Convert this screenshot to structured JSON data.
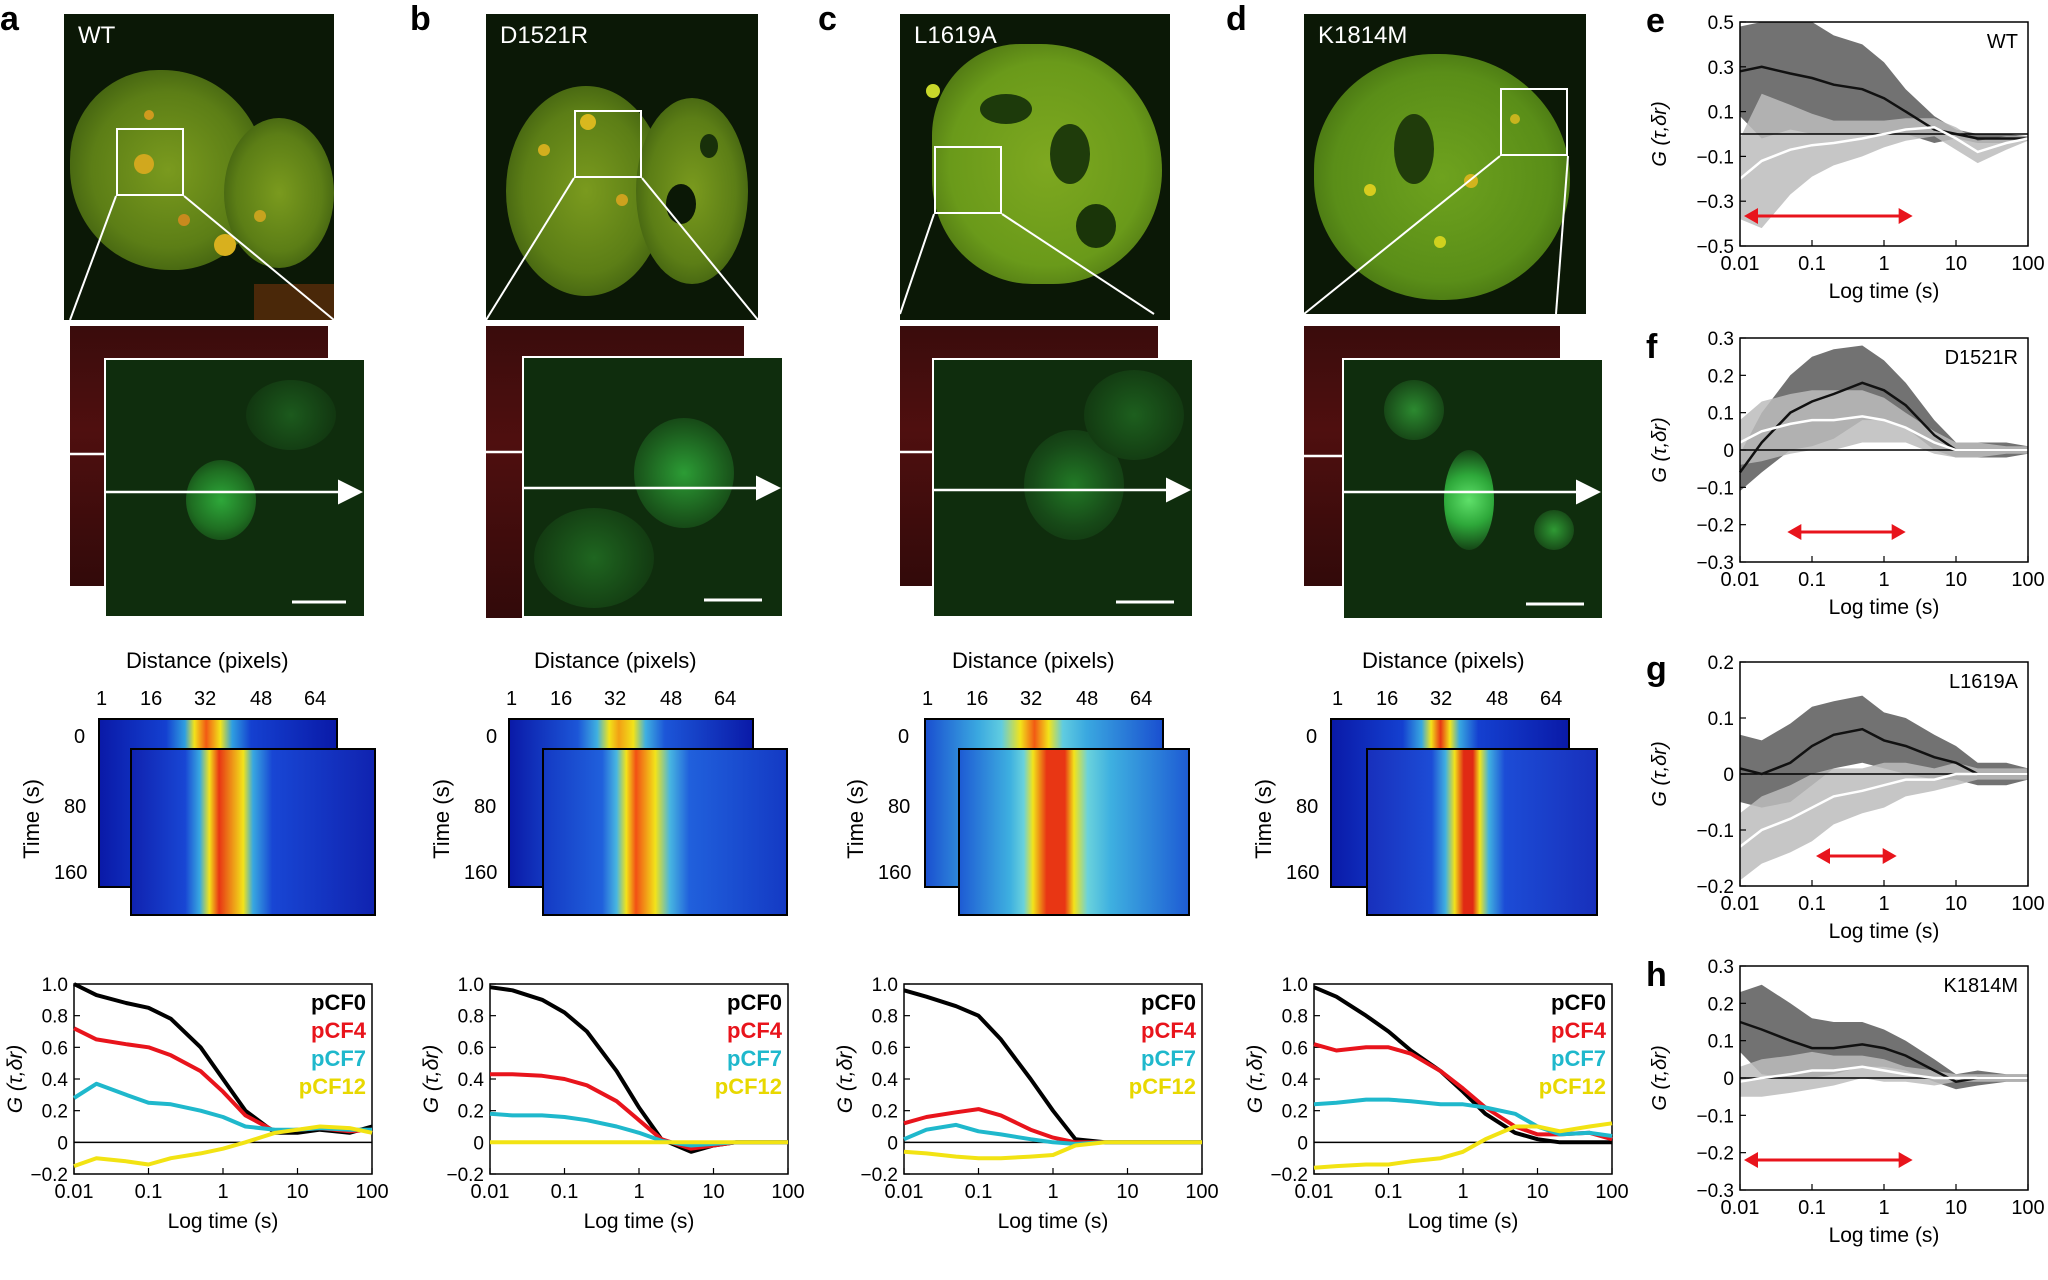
{
  "panels": {
    "letters": [
      "a",
      "b",
      "c",
      "d",
      "e",
      "f",
      "g",
      "h"
    ],
    "mutants": [
      "WT",
      "D1521R",
      "L1619A",
      "K1814M"
    ]
  },
  "kymograph": {
    "xlabel": "Distance (pixels)",
    "xticks": [
      "1",
      "16",
      "32",
      "48",
      "64"
    ],
    "ylabel": "Time (s)",
    "yticks": [
      "0",
      "80",
      "160"
    ]
  },
  "pcf": {
    "xlabel": "Log time (s)",
    "ylabel": "G (τ,δr)",
    "xticks": [
      "0.01",
      "0.1",
      "1",
      "10",
      "100"
    ],
    "yticks": [
      "1.0",
      "0.8",
      "0.6",
      "0.4",
      "0.2",
      "0",
      "−0.2"
    ],
    "legend": [
      {
        "name": "pCF0",
        "color": "#000000"
      },
      {
        "name": "pCF4",
        "color": "#e8141c"
      },
      {
        "name": "pCF7",
        "color": "#1fb8cc"
      },
      {
        "name": "pCF12",
        "color": "#f2e313"
      }
    ]
  },
  "cross": {
    "xlabel": "Log time (s)",
    "ylabel": "G (τ,δr)",
    "xticks": [
      "0.01",
      "0.1",
      "1",
      "10",
      "100"
    ],
    "panels": [
      {
        "label": "WT",
        "yticks": [
          "0.5",
          "0.3",
          "0.1",
          "−0.1",
          "−0.3",
          "−0.5"
        ]
      },
      {
        "label": "D1521R",
        "yticks": [
          "0.3",
          "0.2",
          "0.1",
          "0",
          "−0.1",
          "−0.2",
          "−0.3"
        ]
      },
      {
        "label": "L1619A",
        "yticks": [
          "0.2",
          "0.1",
          "0",
          "−0.1",
          "−0.2"
        ]
      },
      {
        "label": "K1814M",
        "yticks": [
          "0.3",
          "0.2",
          "0.1",
          "0",
          "−0.1",
          "−0.2",
          "−0.3"
        ]
      }
    ]
  },
  "chart_data": [
    {
      "type": "line",
      "panel": "a",
      "title": "",
      "xlabel": "Log time (s)",
      "ylabel": "G (τ,δr)",
      "xscale": "log",
      "xlim": [
        0.01,
        100
      ],
      "ylim": [
        -0.2,
        1.0
      ],
      "legend_position": "top-right",
      "x": [
        0.01,
        0.02,
        0.05,
        0.1,
        0.2,
        0.5,
        1,
        2,
        5,
        10,
        20,
        50,
        100
      ],
      "series": [
        {
          "name": "pCF0",
          "color": "#000000",
          "values": [
            1.0,
            0.93,
            0.88,
            0.85,
            0.78,
            0.6,
            0.4,
            0.2,
            0.06,
            0.06,
            0.08,
            0.06,
            0.1
          ]
        },
        {
          "name": "pCF4",
          "color": "#e8141c",
          "values": [
            0.72,
            0.65,
            0.62,
            0.6,
            0.55,
            0.45,
            0.32,
            0.17,
            0.07,
            0.08,
            0.09,
            0.07,
            0.08
          ]
        },
        {
          "name": "pCF7",
          "color": "#1fb8cc",
          "values": [
            0.28,
            0.37,
            0.3,
            0.25,
            0.24,
            0.2,
            0.16,
            0.1,
            0.08,
            0.08,
            0.09,
            0.08,
            0.08
          ]
        },
        {
          "name": "pCF12",
          "color": "#f2e313",
          "values": [
            -0.15,
            -0.1,
            -0.12,
            -0.14,
            -0.1,
            -0.07,
            -0.04,
            0.0,
            0.06,
            0.08,
            0.1,
            0.09,
            0.06
          ]
        }
      ]
    },
    {
      "type": "line",
      "panel": "b",
      "title": "",
      "xlabel": "Log time (s)",
      "ylabel": "G (τ,δr)",
      "xscale": "log",
      "xlim": [
        0.01,
        100
      ],
      "ylim": [
        -0.2,
        1.0
      ],
      "legend_position": "top-right",
      "x": [
        0.01,
        0.02,
        0.05,
        0.1,
        0.2,
        0.5,
        1,
        2,
        5,
        10,
        20,
        50,
        100
      ],
      "series": [
        {
          "name": "pCF0",
          "color": "#000000",
          "values": [
            0.98,
            0.96,
            0.9,
            0.82,
            0.7,
            0.45,
            0.22,
            0.02,
            -0.06,
            -0.02,
            0.0,
            0.0,
            0.0
          ]
        },
        {
          "name": "pCF4",
          "color": "#e8141c",
          "values": [
            0.43,
            0.43,
            0.42,
            0.4,
            0.36,
            0.26,
            0.14,
            0.02,
            -0.04,
            -0.02,
            0.0,
            0.0,
            0.0
          ]
        },
        {
          "name": "pCF7",
          "color": "#1fb8cc",
          "values": [
            0.18,
            0.17,
            0.17,
            0.16,
            0.14,
            0.1,
            0.06,
            0.01,
            -0.02,
            -0.01,
            0.0,
            0.0,
            0.0
          ]
        },
        {
          "name": "pCF12",
          "color": "#f2e313",
          "values": [
            0.0,
            0.0,
            0.0,
            0.0,
            0.0,
            0.0,
            0.0,
            0.0,
            0.0,
            0.0,
            0.0,
            0.0,
            0.0
          ]
        }
      ]
    },
    {
      "type": "line",
      "panel": "c",
      "title": "",
      "xlabel": "Log time (s)",
      "ylabel": "G (τ,δr)",
      "xscale": "log",
      "xlim": [
        0.01,
        100
      ],
      "ylim": [
        -0.2,
        1.0
      ],
      "legend_position": "top-right",
      "x": [
        0.01,
        0.02,
        0.05,
        0.1,
        0.2,
        0.5,
        1,
        2,
        5,
        10,
        20,
        50,
        100
      ],
      "series": [
        {
          "name": "pCF0",
          "color": "#000000",
          "values": [
            0.96,
            0.92,
            0.86,
            0.8,
            0.65,
            0.4,
            0.2,
            0.02,
            0.0,
            0.0,
            0.0,
            0.0,
            0.0
          ]
        },
        {
          "name": "pCF4",
          "color": "#e8141c",
          "values": [
            0.12,
            0.16,
            0.19,
            0.21,
            0.17,
            0.08,
            0.03,
            0.0,
            0.0,
            0.0,
            0.0,
            0.0,
            0.0
          ]
        },
        {
          "name": "pCF7",
          "color": "#1fb8cc",
          "values": [
            0.02,
            0.08,
            0.11,
            0.07,
            0.05,
            0.02,
            0.0,
            -0.01,
            0.0,
            0.0,
            0.0,
            0.0,
            0.0
          ]
        },
        {
          "name": "pCF12",
          "color": "#f2e313",
          "values": [
            -0.06,
            -0.07,
            -0.09,
            -0.1,
            -0.1,
            -0.09,
            -0.08,
            -0.02,
            0.0,
            0.0,
            0.0,
            0.0,
            0.0
          ]
        }
      ]
    },
    {
      "type": "line",
      "panel": "d",
      "title": "",
      "xlabel": "Log time (s)",
      "ylabel": "G (τ,δr)",
      "xscale": "log",
      "xlim": [
        0.01,
        100
      ],
      "ylim": [
        -0.2,
        1.0
      ],
      "legend_position": "top-right",
      "x": [
        0.01,
        0.02,
        0.05,
        0.1,
        0.2,
        0.5,
        1,
        2,
        5,
        10,
        20,
        50,
        100
      ],
      "series": [
        {
          "name": "pCF0",
          "color": "#000000",
          "values": [
            0.98,
            0.92,
            0.8,
            0.7,
            0.58,
            0.45,
            0.32,
            0.18,
            0.06,
            0.02,
            0.0,
            0.0,
            0.0
          ]
        },
        {
          "name": "pCF4",
          "color": "#e8141c",
          "values": [
            0.62,
            0.58,
            0.6,
            0.6,
            0.56,
            0.45,
            0.34,
            0.22,
            0.1,
            0.05,
            0.05,
            0.06,
            0.02
          ]
        },
        {
          "name": "pCF7",
          "color": "#1fb8cc",
          "values": [
            0.24,
            0.25,
            0.27,
            0.27,
            0.26,
            0.24,
            0.24,
            0.22,
            0.18,
            0.1,
            0.05,
            0.06,
            0.04
          ]
        },
        {
          "name": "pCF12",
          "color": "#f2e313",
          "values": [
            -0.16,
            -0.15,
            -0.14,
            -0.14,
            -0.12,
            -0.1,
            -0.06,
            0.02,
            0.1,
            0.1,
            0.07,
            0.1,
            0.12
          ]
        }
      ]
    },
    {
      "type": "line",
      "panel": "e",
      "title": "WT",
      "xlabel": "Log time (s)",
      "ylabel": "G (τ,δr)",
      "xscale": "log",
      "xlim": [
        0.01,
        100
      ],
      "ylim": [
        -0.5,
        0.5
      ],
      "grid": false,
      "zero_line": true,
      "x": [
        0.01,
        0.02,
        0.05,
        0.1,
        0.2,
        0.5,
        1,
        2,
        5,
        10,
        20,
        50,
        100
      ],
      "series": [
        {
          "color": "#111111",
          "band_color": "#6a6a6a",
          "values": [
            0.28,
            0.3,
            0.27,
            0.25,
            0.22,
            0.2,
            0.16,
            0.1,
            0.02,
            0.0,
            -0.02,
            -0.02,
            -0.02
          ],
          "band": [
            0.2,
            0.32,
            0.25,
            0.25,
            0.22,
            0.2,
            0.16,
            0.1,
            0.06,
            0.02,
            0.02,
            0.02,
            0.01
          ]
        },
        {
          "color": "#ffffff",
          "band_color": "#bcbcbc",
          "values": [
            -0.2,
            -0.12,
            -0.07,
            -0.05,
            -0.04,
            -0.02,
            0.0,
            0.02,
            0.03,
            -0.02,
            -0.08,
            -0.04,
            -0.02
          ],
          "band": [
            0.18,
            0.3,
            0.2,
            0.14,
            0.1,
            0.08,
            0.06,
            0.05,
            0.04,
            0.05,
            0.05,
            0.03,
            0.01
          ]
        }
      ],
      "arrow": {
        "from": 0.01,
        "to": 2.5
      }
    },
    {
      "type": "line",
      "panel": "f",
      "title": "D1521R",
      "xlabel": "Log time (s)",
      "ylabel": "G (τ,δr)",
      "xscale": "log",
      "xlim": [
        0.01,
        100
      ],
      "ylim": [
        -0.3,
        0.3
      ],
      "grid": false,
      "zero_line": true,
      "x": [
        0.01,
        0.02,
        0.05,
        0.1,
        0.2,
        0.5,
        1,
        2,
        5,
        10,
        20,
        50,
        100
      ],
      "series": [
        {
          "color": "#111111",
          "band_color": "#6a6a6a",
          "values": [
            -0.06,
            0.02,
            0.1,
            0.13,
            0.15,
            0.18,
            0.16,
            0.12,
            0.04,
            0.0,
            0.0,
            0.0,
            0.0
          ],
          "band": [
            0.05,
            0.08,
            0.1,
            0.12,
            0.12,
            0.1,
            0.08,
            0.06,
            0.04,
            0.02,
            0.02,
            0.02,
            0.01
          ]
        },
        {
          "color": "#ffffff",
          "band_color": "#bcbcbc",
          "values": [
            0.02,
            0.05,
            0.07,
            0.08,
            0.08,
            0.09,
            0.08,
            0.06,
            0.02,
            0.0,
            0.0,
            0.0,
            0.0
          ],
          "band": [
            0.06,
            0.08,
            0.08,
            0.08,
            0.08,
            0.07,
            0.06,
            0.04,
            0.03,
            0.02,
            0.02,
            0.01,
            0.01
          ]
        }
      ],
      "arrow": {
        "from": 0.04,
        "to": 2.0
      }
    },
    {
      "type": "line",
      "panel": "g",
      "title": "L1619A",
      "xlabel": "Log time (s)",
      "ylabel": "G (τ,δr)",
      "xscale": "log",
      "xlim": [
        0.01,
        100
      ],
      "ylim": [
        -0.2,
        0.2
      ],
      "grid": false,
      "zero_line": true,
      "x": [
        0.01,
        0.02,
        0.05,
        0.1,
        0.2,
        0.5,
        1,
        2,
        5,
        10,
        20,
        50,
        100
      ],
      "series": [
        {
          "color": "#111111",
          "band_color": "#6a6a6a",
          "values": [
            0.01,
            0.0,
            0.02,
            0.05,
            0.07,
            0.08,
            0.06,
            0.05,
            0.03,
            0.02,
            0.0,
            0.0,
            0.0
          ],
          "band": [
            0.06,
            0.06,
            0.07,
            0.07,
            0.06,
            0.06,
            0.05,
            0.05,
            0.04,
            0.03,
            0.02,
            0.02,
            0.01
          ]
        },
        {
          "color": "#ffffff",
          "band_color": "#bcbcbc",
          "values": [
            -0.13,
            -0.1,
            -0.08,
            -0.06,
            -0.04,
            -0.03,
            -0.02,
            -0.01,
            -0.01,
            0.0,
            0.0,
            0.0,
            0.0
          ],
          "band": [
            0.06,
            0.06,
            0.06,
            0.06,
            0.05,
            0.04,
            0.04,
            0.03,
            0.02,
            0.02,
            0.01,
            0.01,
            0.01
          ]
        }
      ],
      "arrow": {
        "from": 0.1,
        "to": 1.5
      }
    },
    {
      "type": "line",
      "panel": "h",
      "title": "K1814M",
      "xlabel": "Log time (s)",
      "ylabel": "G (τ,δr)",
      "xscale": "log",
      "xlim": [
        0.01,
        100
      ],
      "ylim": [
        -0.3,
        0.3
      ],
      "grid": false,
      "zero_line": true,
      "x": [
        0.01,
        0.02,
        0.05,
        0.1,
        0.2,
        0.5,
        1,
        2,
        5,
        10,
        20,
        50,
        100
      ],
      "series": [
        {
          "color": "#111111",
          "band_color": "#6a6a6a",
          "values": [
            0.15,
            0.13,
            0.1,
            0.08,
            0.08,
            0.09,
            0.08,
            0.06,
            0.02,
            -0.01,
            0.0,
            0.0,
            0.0
          ],
          "band": [
            0.08,
            0.12,
            0.1,
            0.08,
            0.07,
            0.06,
            0.05,
            0.04,
            0.03,
            0.02,
            0.02,
            0.01,
            0.01
          ]
        },
        {
          "color": "#ffffff",
          "band_color": "#bcbcbc",
          "values": [
            -0.01,
            0.0,
            0.01,
            0.02,
            0.02,
            0.03,
            0.02,
            0.01,
            0.0,
            0.0,
            0.0,
            0.0,
            0.0
          ],
          "band": [
            0.04,
            0.05,
            0.05,
            0.05,
            0.04,
            0.03,
            0.03,
            0.02,
            0.02,
            0.01,
            0.01,
            0.01,
            0.01
          ]
        }
      ],
      "arrow": {
        "from": 0.01,
        "to": 2.5
      }
    }
  ]
}
